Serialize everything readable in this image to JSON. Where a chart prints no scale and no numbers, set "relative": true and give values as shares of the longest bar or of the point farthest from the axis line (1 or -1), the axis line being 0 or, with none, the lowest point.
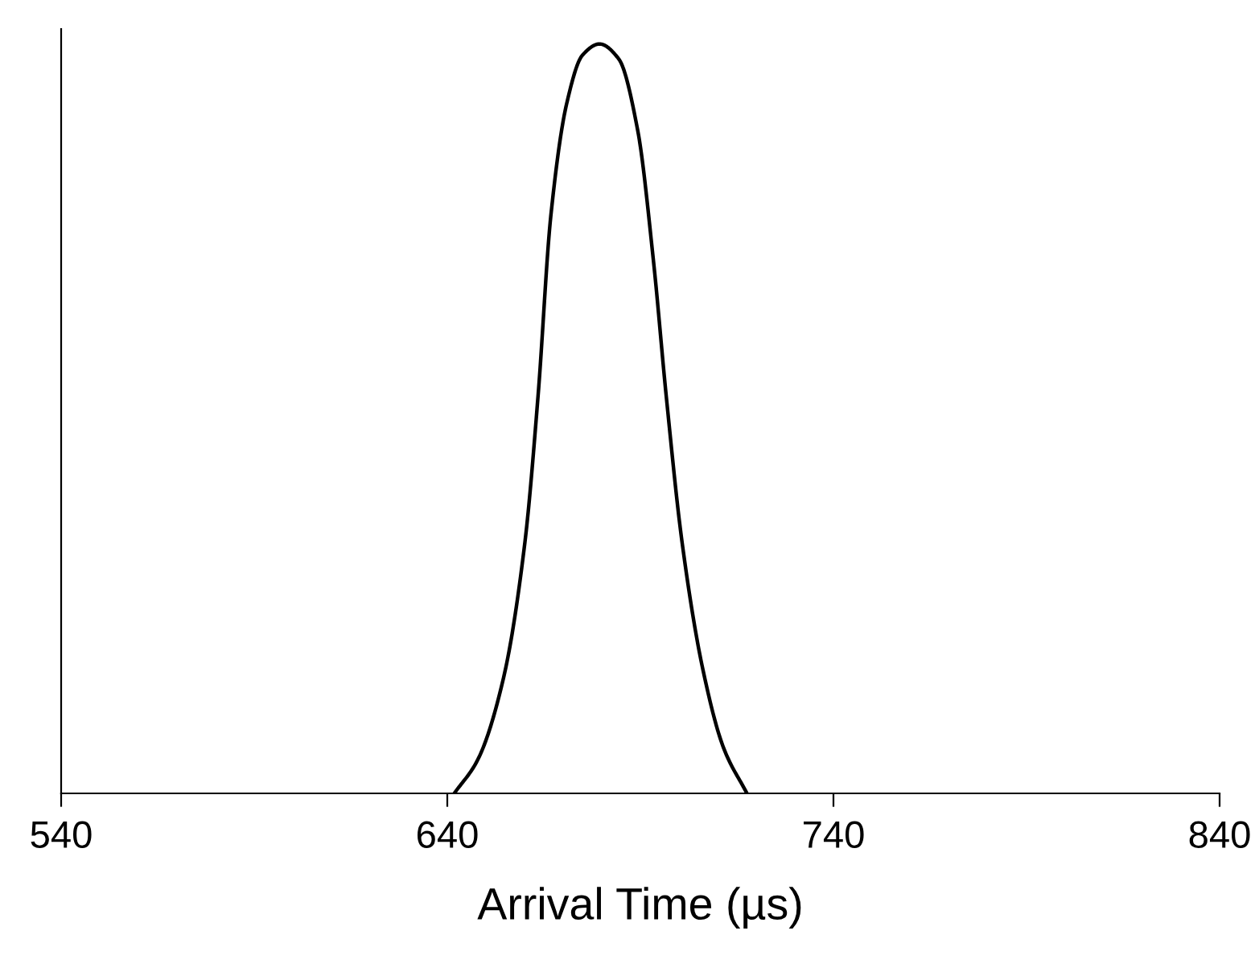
{
  "chart_data": {
    "type": "line",
    "xlabel": "Arrival Time (µs)",
    "relative": true,
    "xlim": [
      540,
      840
    ],
    "xticks": [
      540,
      640,
      740,
      840
    ],
    "tick_labels": "x",
    "grid": false,
    "marker": "none",
    "line_style": "solid",
    "series": [
      {
        "color": "#000000",
        "x": [
          641.8,
          647.9,
          654.6,
          660.1,
          663.5,
          666.8,
          670.9,
          675,
          679.4,
          684.4,
          689.3,
          693.4,
          696.7,
          700.8,
          706.2,
          711.6,
          717.6
        ],
        "values": [
          0,
          0.045,
          0.155,
          0.335,
          0.53,
          0.77,
          0.92,
          0.985,
          1,
          0.98,
          0.885,
          0.71,
          0.53,
          0.335,
          0.165,
          0.06,
          0
        ]
      }
    ]
  }
}
